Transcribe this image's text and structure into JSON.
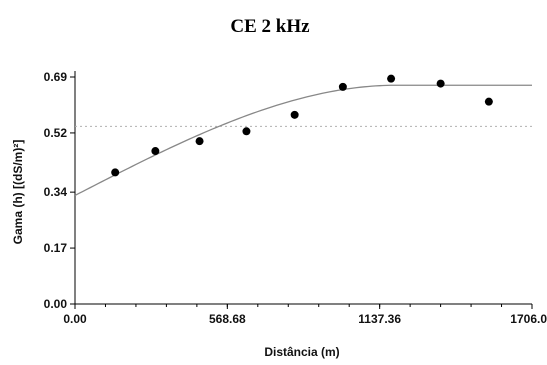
{
  "chart_data": {
    "type": "scatter",
    "title": "CE 2 kHz",
    "xlabel": "Distância (m)",
    "ylabel": "Gama (h) [(dS/m)²]",
    "xlim": [
      0,
      1706.04
    ],
    "ylim": [
      0,
      0.69
    ],
    "x_ticks": [
      "0.00",
      "568.68",
      "1137.36",
      "1706.04"
    ],
    "y_ticks": [
      "0.00",
      "0.17",
      "0.34",
      "0.52",
      "0.69"
    ],
    "x_tick_values": [
      0,
      568.68,
      1137.36,
      1706.04
    ],
    "y_tick_values": [
      0,
      0.17,
      0.34,
      0.52,
      0.69
    ],
    "grid": false,
    "points": {
      "x": [
        150,
        300,
        465,
        640,
        820,
        1000,
        1180,
        1365,
        1545
      ],
      "y": [
        0.4,
        0.465,
        0.495,
        0.525,
        0.575,
        0.66,
        0.685,
        0.67,
        0.615
      ]
    },
    "model_curve": {
      "nugget": 0.33,
      "sill": 0.665,
      "range": 1200
    },
    "sill_reference": 0.54,
    "colors": {
      "points": "#000000",
      "curve": "#888888",
      "sill_line": "#b0b0b0",
      "axes": "#000000"
    }
  }
}
